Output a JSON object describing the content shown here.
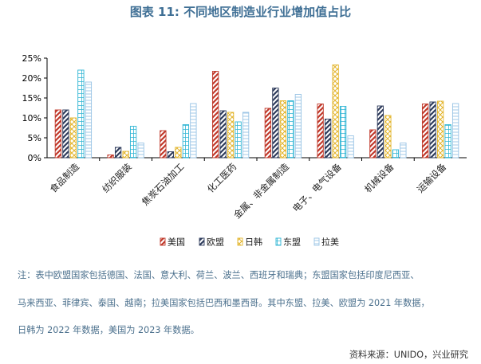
{
  "title": "图表 11: 不同地区制造业行业增加值占比",
  "notes": [
    "注：表中欧盟国家包括德国、法国、意大利、荷兰、波兰、西班牙和瑞典；东盟国家包括印度尼西亚、",
    "马来西亚、菲律宾、泰国、越南；拉美国家包括巴西和墨西哥。其中东盟、拉美、欧盟为 2021 年数据，",
    "日韩为 2022 年数据，美国为 2023 年数据。"
  ],
  "source": "资料来源：UNIDO，兴业研究",
  "chart_data": {
    "type": "bar",
    "categories": [
      "食品制造",
      "纺织服装",
      "焦炭石油加工",
      "化工医药",
      "金属、非金属制造",
      "电子、电气设备",
      "机械设备",
      "运输设备"
    ],
    "series": [
      {
        "name": "美国",
        "color": "#c0392b",
        "values": [
          12,
          0.7,
          6.8,
          21.7,
          12.4,
          13.5,
          7.0,
          13.5
        ]
      },
      {
        "name": "欧盟",
        "color": "#2f3c5c",
        "values": [
          12,
          2.6,
          1.5,
          11.8,
          17.5,
          9.7,
          13.0,
          14.0
        ]
      },
      {
        "name": "日韩",
        "color": "#e3b52d",
        "values": [
          10,
          1.6,
          2.6,
          11.4,
          14.3,
          23.3,
          10.6,
          14.2
        ]
      },
      {
        "name": "东盟",
        "color": "#2fb5d4",
        "values": [
          22,
          7.9,
          8.3,
          9.0,
          14.3,
          12.9,
          2.0,
          8.3
        ]
      },
      {
        "name": "拉美",
        "color": "#98c3e5",
        "values": [
          19,
          3.7,
          13.6,
          11.4,
          15.9,
          5.5,
          3.7,
          13.6
        ]
      }
    ],
    "ylim": [
      0,
      25
    ],
    "yticks": [
      "0%",
      "5%",
      "10%",
      "15%",
      "20%",
      "25%"
    ],
    "legend": "bottom"
  }
}
